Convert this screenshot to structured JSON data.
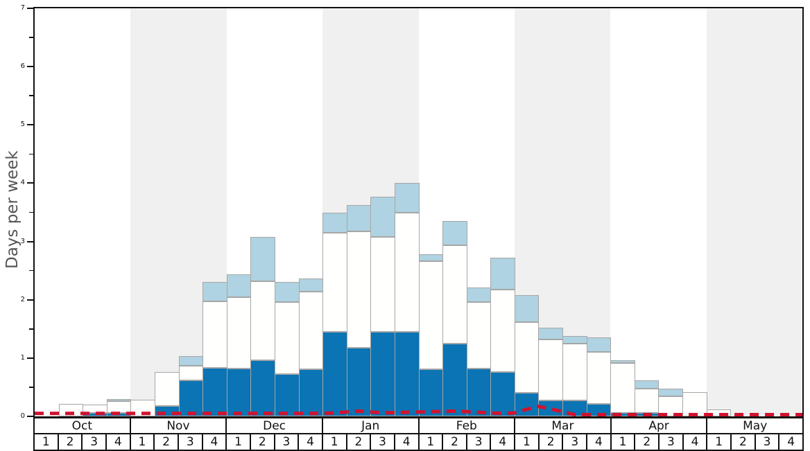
{
  "ylabel": "Days per week",
  "chart_data": {
    "type": "bar",
    "stacked": true,
    "title": "",
    "xlabel": "",
    "ylabel": "Days per week",
    "ylim": [
      0,
      7
    ],
    "y_ticks": [
      0,
      1,
      2,
      3,
      4,
      5,
      6,
      7
    ],
    "y_minor_tick_step": 0.5,
    "grid": false,
    "legend": "none",
    "months": [
      {
        "label": "Oct",
        "weeks": [
          "1",
          "2",
          "3",
          "4"
        ],
        "shaded": false
      },
      {
        "label": "Nov",
        "weeks": [
          "1",
          "2",
          "3",
          "4"
        ],
        "shaded": true
      },
      {
        "label": "Dec",
        "weeks": [
          "1",
          "2",
          "3",
          "4"
        ],
        "shaded": false
      },
      {
        "label": "Jan",
        "weeks": [
          "1",
          "2",
          "3",
          "4"
        ],
        "shaded": true
      },
      {
        "label": "Feb",
        "weeks": [
          "1",
          "2",
          "3",
          "4"
        ],
        "shaded": false
      },
      {
        "label": "Mar",
        "weeks": [
          "1",
          "2",
          "3",
          "4"
        ],
        "shaded": true
      },
      {
        "label": "Apr",
        "weeks": [
          "1",
          "2",
          "3",
          "4"
        ],
        "shaded": false
      },
      {
        "label": "May",
        "weeks": [
          "1",
          "2",
          "3",
          "4"
        ],
        "shaded": true
      }
    ],
    "series": [
      {
        "name": "dark_blue_bottom",
        "color": "#0b74b4",
        "values": [
          0,
          0,
          0.06,
          0.06,
          0,
          0.18,
          0.62,
          0.83,
          0.82,
          0.96,
          0.73,
          0.81,
          1.45,
          1.18,
          1.45,
          1.45,
          0.81,
          1.25,
          0.82,
          0.76,
          0.41,
          0.27,
          0.27,
          0.21,
          0.06,
          0.06,
          0,
          0,
          0,
          0,
          0,
          0
        ]
      },
      {
        "name": "white_middle",
        "color": "#fffffe",
        "values": [
          0,
          0.21,
          0.14,
          0.2,
          0.28,
          0.58,
          0.25,
          1.14,
          1.22,
          1.36,
          1.23,
          1.33,
          1.7,
          1.99,
          1.63,
          2.05,
          1.85,
          1.69,
          1.14,
          1.41,
          1.21,
          1.05,
          0.98,
          0.9,
          0.85,
          0.42,
          0.35,
          0.42,
          0.12,
          0,
          0,
          0
        ]
      },
      {
        "name": "light_blue_top",
        "color": "#afd3e2",
        "values": [
          0,
          0,
          0,
          0.04,
          0,
          0,
          0.17,
          0.33,
          0.4,
          0.76,
          0.35,
          0.23,
          0.35,
          0.46,
          0.69,
          0.5,
          0.12,
          0.41,
          0.25,
          0.55,
          0.46,
          0.2,
          0.13,
          0.25,
          0.05,
          0.14,
          0.12,
          0,
          0,
          0,
          0,
          0
        ]
      }
    ],
    "red_dashed_line": {
      "color": "#d2122e",
      "points_week_value": [
        [
          0,
          0.05
        ],
        [
          4,
          0.05
        ],
        [
          8,
          0.05
        ],
        [
          12,
          0.05
        ],
        [
          12.5,
          0.06
        ],
        [
          13.5,
          0.09
        ],
        [
          14.5,
          0.06
        ],
        [
          15.5,
          0.07
        ],
        [
          16.5,
          0.08
        ],
        [
          17.5,
          0.09
        ],
        [
          18.5,
          0.07
        ],
        [
          19.5,
          0.05
        ],
        [
          20,
          0.06
        ],
        [
          20.5,
          0.12
        ],
        [
          21,
          0.17
        ],
        [
          21.5,
          0.13
        ],
        [
          22.5,
          0.03
        ],
        [
          24,
          0.03
        ],
        [
          28,
          0.03
        ],
        [
          32,
          0.03
        ]
      ]
    },
    "colors": {
      "shaded_band": "#f0f0f0",
      "bar_border": "#a6a6a6",
      "axis": "#111111",
      "tick_label": "#111111",
      "ylabel_text": "#555555"
    }
  }
}
